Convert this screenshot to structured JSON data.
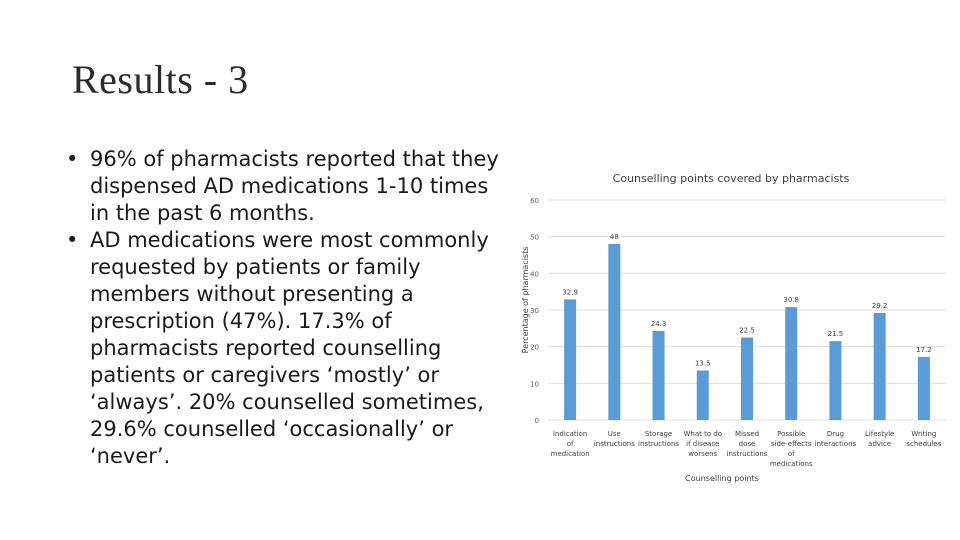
{
  "slide": {
    "title": "Results - 3",
    "bullets": [
      "96% of pharmacists reported that they dispensed AD medications 1-10 times in the past 6 months.",
      "AD medications were most commonly requested by patients or family members without presenting a prescription (47%). 17.3% of pharmacists reported counselling patients or caregivers ‘mostly’ or ‘always’. 20% counselled sometimes, 29.6% counselled ‘occasionally’ or ‘never’."
    ]
  },
  "chart_data": {
    "type": "bar",
    "title": "Counselling points covered by pharmacists",
    "xlabel": "Counselling points",
    "ylabel": "Percentage of pharmacists",
    "ylim": [
      0,
      60
    ],
    "yticks": [
      0,
      10,
      20,
      30,
      40,
      50,
      60
    ],
    "grid": true,
    "bar_color": "#5b9bd5",
    "categories": [
      [
        "Indication",
        "of",
        "medication"
      ],
      [
        "Use",
        "instructions"
      ],
      [
        "Storage",
        "instructions"
      ],
      [
        "What to do",
        "if disease",
        "worsens"
      ],
      [
        "Missed",
        "dose",
        "instructions"
      ],
      [
        "Possible",
        "side-effects",
        "of",
        "medications"
      ],
      [
        "Drug",
        "interactions"
      ],
      [
        "Lifestyle",
        "advice"
      ],
      [
        "Writing",
        "schedules"
      ]
    ],
    "values": [
      32.9,
      48,
      24.3,
      13.5,
      22.5,
      30.8,
      21.5,
      29.2,
      17.2
    ],
    "labels": [
      "32.9",
      "48",
      "24.3",
      "13.5",
      "22.5",
      "30.8",
      "21.5",
      "29.2",
      "17.2"
    ]
  }
}
